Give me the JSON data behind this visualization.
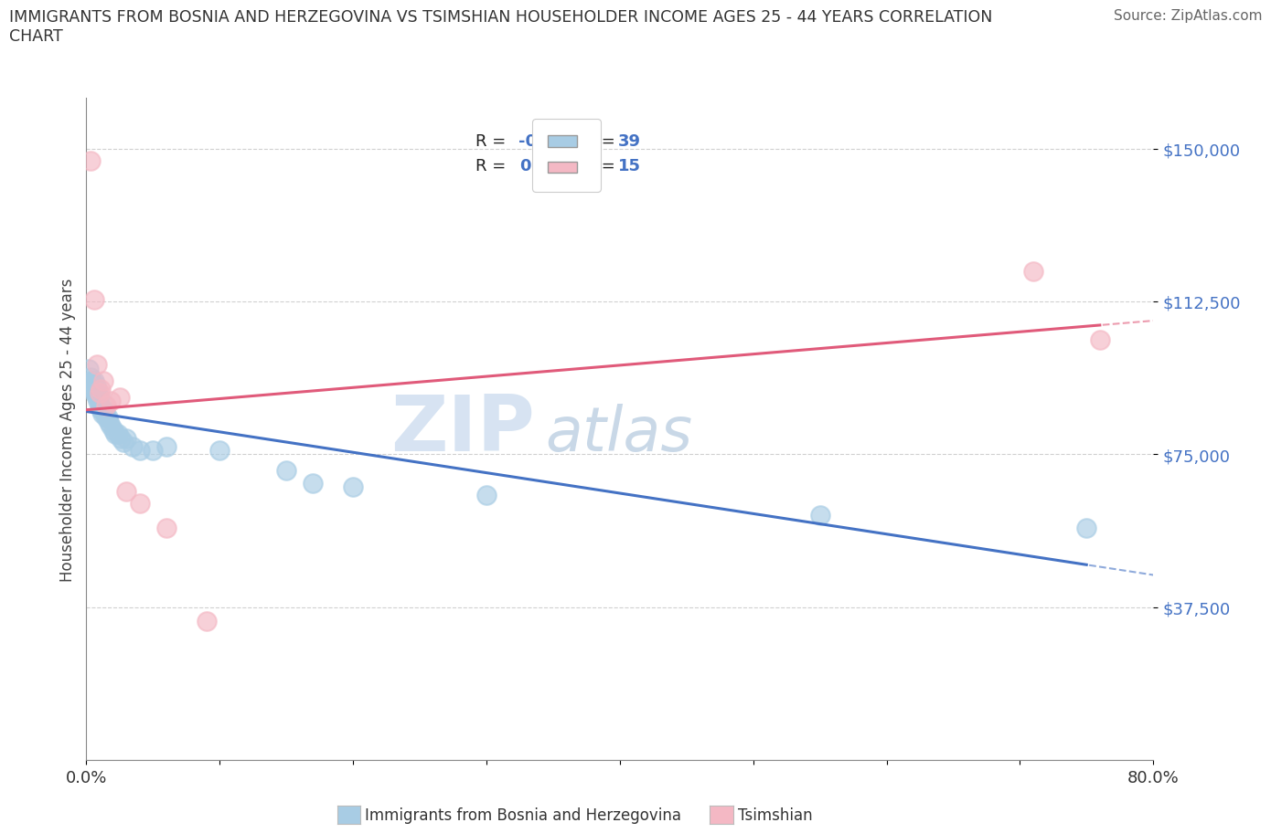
{
  "title": "IMMIGRANTS FROM BOSNIA AND HERZEGOVINA VS TSIMSHIAN HOUSEHOLDER INCOME AGES 25 - 44 YEARS CORRELATION\nCHART",
  "source_text": "Source: ZipAtlas.com",
  "ylabel": "Householder Income Ages 25 - 44 years",
  "xlim": [
    0.0,
    0.8
  ],
  "ylim": [
    0,
    162500
  ],
  "yticks": [
    37500,
    75000,
    112500,
    150000
  ],
  "ytick_labels": [
    "$37,500",
    "$75,000",
    "$112,500",
    "$150,000"
  ],
  "xticks": [
    0.0,
    0.1,
    0.2,
    0.3,
    0.4,
    0.5,
    0.6,
    0.7,
    0.8
  ],
  "xtick_labels": [
    "0.0%",
    "",
    "",
    "",
    "",
    "",
    "",
    "",
    "80.0%"
  ],
  "blue_R": -0.474,
  "blue_N": 39,
  "pink_R": 0.225,
  "pink_N": 15,
  "blue_color": "#a8cce4",
  "pink_color": "#f4b8c4",
  "blue_line_color": "#4472c4",
  "pink_line_color": "#e05a7a",
  "blue_scatter": [
    [
      0.002,
      96000
    ],
    [
      0.003,
      94000
    ],
    [
      0.004,
      93000
    ],
    [
      0.005,
      92000
    ],
    [
      0.005,
      91000
    ],
    [
      0.006,
      93000
    ],
    [
      0.006,
      90000
    ],
    [
      0.007,
      92000
    ],
    [
      0.007,
      90000
    ],
    [
      0.008,
      91000
    ],
    [
      0.008,
      89000
    ],
    [
      0.009,
      88000
    ],
    [
      0.01,
      89000
    ],
    [
      0.01,
      87000
    ],
    [
      0.011,
      86000
    ],
    [
      0.012,
      85000
    ],
    [
      0.013,
      86000
    ],
    [
      0.014,
      85000
    ],
    [
      0.015,
      84000
    ],
    [
      0.016,
      84000
    ],
    [
      0.017,
      83000
    ],
    [
      0.018,
      82000
    ],
    [
      0.02,
      81000
    ],
    [
      0.022,
      80000
    ],
    [
      0.024,
      80000
    ],
    [
      0.026,
      79000
    ],
    [
      0.028,
      78000
    ],
    [
      0.03,
      79000
    ],
    [
      0.035,
      77000
    ],
    [
      0.04,
      76000
    ],
    [
      0.05,
      76000
    ],
    [
      0.06,
      77000
    ],
    [
      0.1,
      76000
    ],
    [
      0.15,
      71000
    ],
    [
      0.17,
      68000
    ],
    [
      0.2,
      67000
    ],
    [
      0.3,
      65000
    ],
    [
      0.55,
      60000
    ],
    [
      0.75,
      57000
    ]
  ],
  "pink_scatter": [
    [
      0.003,
      147000
    ],
    [
      0.006,
      113000
    ],
    [
      0.008,
      97000
    ],
    [
      0.01,
      90000
    ],
    [
      0.011,
      91000
    ],
    [
      0.013,
      93000
    ],
    [
      0.015,
      87000
    ],
    [
      0.018,
      88000
    ],
    [
      0.025,
      89000
    ],
    [
      0.03,
      66000
    ],
    [
      0.04,
      63000
    ],
    [
      0.06,
      57000
    ],
    [
      0.09,
      34000
    ],
    [
      0.71,
      120000
    ],
    [
      0.76,
      103000
    ]
  ],
  "watermark_zip": "ZIP",
  "watermark_atlas": "atlas",
  "background_color": "#ffffff",
  "grid_color": "#d0d0d0",
  "legend_label_blue": "Immigrants from Bosnia and Herzegovina",
  "legend_label_pink": "Tsimshian"
}
